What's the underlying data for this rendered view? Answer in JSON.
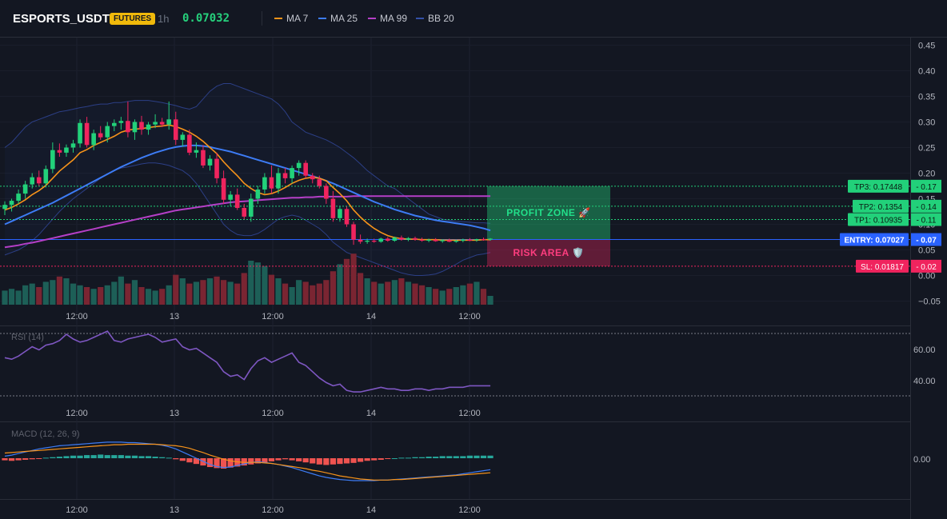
{
  "header": {
    "symbol": "ESPORTS_USDT",
    "badge": "FUTURES",
    "interval": "1h",
    "last_price": "0.07032",
    "legend": [
      {
        "label": "MA 7",
        "color": "#f7931a"
      },
      {
        "label": "MA 25",
        "color": "#3d7cf5"
      },
      {
        "label": "MA 99",
        "color": "#b53fc7"
      },
      {
        "label": "BB 20",
        "color": "#3451a8"
      }
    ]
  },
  "colors": {
    "up": "#26a69a",
    "down": "#f23645",
    "candle_up": "#22d17a",
    "candle_down": "#f0245e",
    "rsi": "#7e57c2",
    "macd": "#3d7cf5",
    "signal": "#f7931a"
  },
  "price_axis": {
    "ticks": [
      "0.45",
      "0.40",
      "0.35",
      "0.30",
      "0.25",
      "0.20",
      "0.15",
      "0.10",
      "0.05",
      "0.00",
      "−0.05"
    ]
  },
  "time_axis": {
    "labels": [
      "12:00",
      "13",
      "12:00",
      "14",
      "12:00"
    ]
  },
  "levels": {
    "tp3": {
      "label": "TP3: 0.17448",
      "axis": "0.17",
      "value": 0.17448
    },
    "tp2": {
      "label": "TP2: 0.1354",
      "axis": "0.14",
      "value": 0.1354
    },
    "tp1": {
      "label": "TP1: 0.10935",
      "axis": "0.11",
      "value": 0.10935
    },
    "entry": {
      "label": "ENTRY: 0.07027",
      "axis": "0.07",
      "value": 0.07027
    },
    "sl": {
      "label": "SL: 0.01817",
      "axis": "0.02",
      "value": 0.01817
    }
  },
  "zones": {
    "profit": "PROFIT ZONE 🚀",
    "risk": "RISK AREA 🛡️"
  },
  "rsi_panel": {
    "title": "RSI (14)",
    "ticks": [
      "60.00",
      "40.00"
    ]
  },
  "macd_panel": {
    "title": "MACD (12, 26, 9)",
    "ticks": [
      "0.00"
    ]
  },
  "chart_data": {
    "type": "candlestick",
    "ylim": [
      -0.05,
      0.45
    ],
    "candles": [
      {
        "o": 0.13,
        "h": 0.145,
        "l": 0.118,
        "c": 0.138
      },
      {
        "o": 0.138,
        "h": 0.15,
        "l": 0.125,
        "c": 0.146
      },
      {
        "o": 0.146,
        "h": 0.168,
        "l": 0.14,
        "c": 0.16
      },
      {
        "o": 0.16,
        "h": 0.185,
        "l": 0.15,
        "c": 0.178
      },
      {
        "o": 0.178,
        "h": 0.2,
        "l": 0.17,
        "c": 0.192
      },
      {
        "o": 0.192,
        "h": 0.205,
        "l": 0.175,
        "c": 0.18
      },
      {
        "o": 0.18,
        "h": 0.215,
        "l": 0.172,
        "c": 0.208
      },
      {
        "o": 0.208,
        "h": 0.26,
        "l": 0.2,
        "c": 0.245
      },
      {
        "o": 0.245,
        "h": 0.258,
        "l": 0.232,
        "c": 0.24
      },
      {
        "o": 0.24,
        "h": 0.256,
        "l": 0.232,
        "c": 0.25
      },
      {
        "o": 0.25,
        "h": 0.265,
        "l": 0.24,
        "c": 0.258
      },
      {
        "o": 0.258,
        "h": 0.305,
        "l": 0.25,
        "c": 0.298
      },
      {
        "o": 0.298,
        "h": 0.31,
        "l": 0.25,
        "c": 0.255
      },
      {
        "o": 0.255,
        "h": 0.285,
        "l": 0.245,
        "c": 0.278
      },
      {
        "o": 0.278,
        "h": 0.292,
        "l": 0.265,
        "c": 0.27
      },
      {
        "o": 0.27,
        "h": 0.3,
        "l": 0.26,
        "c": 0.292
      },
      {
        "o": 0.292,
        "h": 0.305,
        "l": 0.282,
        "c": 0.298
      },
      {
        "o": 0.298,
        "h": 0.31,
        "l": 0.285,
        "c": 0.302
      },
      {
        "o": 0.302,
        "h": 0.34,
        "l": 0.27,
        "c": 0.28
      },
      {
        "o": 0.28,
        "h": 0.305,
        "l": 0.265,
        "c": 0.3
      },
      {
        "o": 0.3,
        "h": 0.312,
        "l": 0.275,
        "c": 0.285
      },
      {
        "o": 0.285,
        "h": 0.3,
        "l": 0.275,
        "c": 0.295
      },
      {
        "o": 0.295,
        "h": 0.315,
        "l": 0.288,
        "c": 0.3
      },
      {
        "o": 0.3,
        "h": 0.308,
        "l": 0.29,
        "c": 0.295
      },
      {
        "o": 0.295,
        "h": 0.34,
        "l": 0.285,
        "c": 0.305
      },
      {
        "o": 0.305,
        "h": 0.32,
        "l": 0.255,
        "c": 0.265
      },
      {
        "o": 0.265,
        "h": 0.28,
        "l": 0.252,
        "c": 0.275
      },
      {
        "o": 0.275,
        "h": 0.285,
        "l": 0.235,
        "c": 0.24
      },
      {
        "o": 0.24,
        "h": 0.26,
        "l": 0.23,
        "c": 0.245
      },
      {
        "o": 0.245,
        "h": 0.255,
        "l": 0.21,
        "c": 0.215
      },
      {
        "o": 0.215,
        "h": 0.235,
        "l": 0.205,
        "c": 0.228
      },
      {
        "o": 0.228,
        "h": 0.24,
        "l": 0.18,
        "c": 0.19
      },
      {
        "o": 0.19,
        "h": 0.205,
        "l": 0.14,
        "c": 0.148
      },
      {
        "o": 0.148,
        "h": 0.165,
        "l": 0.135,
        "c": 0.158
      },
      {
        "o": 0.158,
        "h": 0.17,
        "l": 0.128,
        "c": 0.132
      },
      {
        "o": 0.132,
        "h": 0.14,
        "l": 0.11,
        "c": 0.115
      },
      {
        "o": 0.115,
        "h": 0.16,
        "l": 0.105,
        "c": 0.15
      },
      {
        "o": 0.15,
        "h": 0.175,
        "l": 0.14,
        "c": 0.168
      },
      {
        "o": 0.168,
        "h": 0.2,
        "l": 0.16,
        "c": 0.192
      },
      {
        "o": 0.192,
        "h": 0.215,
        "l": 0.16,
        "c": 0.17
      },
      {
        "o": 0.17,
        "h": 0.21,
        "l": 0.16,
        "c": 0.2
      },
      {
        "o": 0.2,
        "h": 0.21,
        "l": 0.18,
        "c": 0.19
      },
      {
        "o": 0.19,
        "h": 0.215,
        "l": 0.18,
        "c": 0.21
      },
      {
        "o": 0.21,
        "h": 0.225,
        "l": 0.195,
        "c": 0.22
      },
      {
        "o": 0.22,
        "h": 0.225,
        "l": 0.19,
        "c": 0.195
      },
      {
        "o": 0.195,
        "h": 0.2,
        "l": 0.18,
        "c": 0.188
      },
      {
        "o": 0.188,
        "h": 0.195,
        "l": 0.17,
        "c": 0.175
      },
      {
        "o": 0.175,
        "h": 0.18,
        "l": 0.14,
        "c": 0.15
      },
      {
        "o": 0.15,
        "h": 0.165,
        "l": 0.105,
        "c": 0.112
      },
      {
        "o": 0.112,
        "h": 0.135,
        "l": 0.105,
        "c": 0.13
      },
      {
        "o": 0.13,
        "h": 0.135,
        "l": 0.095,
        "c": 0.1
      },
      {
        "o": 0.1,
        "h": 0.105,
        "l": 0.06,
        "c": 0.07
      },
      {
        "o": 0.07,
        "h": 0.08,
        "l": 0.062,
        "c": 0.066
      },
      {
        "o": 0.066,
        "h": 0.072,
        "l": 0.062,
        "c": 0.068
      },
      {
        "o": 0.068,
        "h": 0.072,
        "l": 0.064,
        "c": 0.066
      },
      {
        "o": 0.066,
        "h": 0.074,
        "l": 0.064,
        "c": 0.072
      },
      {
        "o": 0.072,
        "h": 0.075,
        "l": 0.066,
        "c": 0.068
      },
      {
        "o": 0.068,
        "h": 0.076,
        "l": 0.066,
        "c": 0.074
      },
      {
        "o": 0.074,
        "h": 0.078,
        "l": 0.068,
        "c": 0.07
      },
      {
        "o": 0.07,
        "h": 0.075,
        "l": 0.067,
        "c": 0.073
      },
      {
        "o": 0.073,
        "h": 0.076,
        "l": 0.068,
        "c": 0.07
      },
      {
        "o": 0.07,
        "h": 0.074,
        "l": 0.066,
        "c": 0.068
      },
      {
        "o": 0.068,
        "h": 0.072,
        "l": 0.065,
        "c": 0.07
      },
      {
        "o": 0.07,
        "h": 0.073,
        "l": 0.066,
        "c": 0.067
      },
      {
        "o": 0.067,
        "h": 0.071,
        "l": 0.064,
        "c": 0.069
      },
      {
        "o": 0.069,
        "h": 0.072,
        "l": 0.065,
        "c": 0.066
      },
      {
        "o": 0.066,
        "h": 0.07,
        "l": 0.064,
        "c": 0.068
      },
      {
        "o": 0.068,
        "h": 0.072,
        "l": 0.065,
        "c": 0.07
      },
      {
        "o": 0.07,
        "h": 0.073,
        "l": 0.067,
        "c": 0.069
      },
      {
        "o": 0.069,
        "h": 0.072,
        "l": 0.066,
        "c": 0.071
      },
      {
        "o": 0.071,
        "h": 0.074,
        "l": 0.068,
        "c": 0.07
      },
      {
        "o": 0.07,
        "h": 0.073,
        "l": 0.068,
        "c": 0.072
      }
    ],
    "volume": [
      8,
      9,
      8,
      11,
      12,
      10,
      13,
      14,
      16,
      15,
      12,
      11,
      10,
      9,
      10,
      11,
      13,
      16,
      12,
      14,
      10,
      9,
      8,
      9,
      11,
      17,
      15,
      12,
      13,
      14,
      15,
      16,
      14,
      13,
      12,
      18,
      25,
      24,
      22,
      17,
      15,
      12,
      10,
      14,
      13,
      11,
      12,
      14,
      19,
      23,
      26,
      29,
      18,
      15,
      13,
      12,
      13,
      14,
      15,
      13,
      12,
      11,
      10,
      9,
      8,
      9,
      10,
      11,
      12,
      13,
      9,
      5
    ],
    "ma7": [
      0.128,
      0.133,
      0.14,
      0.148,
      0.158,
      0.166,
      0.176,
      0.19,
      0.204,
      0.215,
      0.226,
      0.24,
      0.246,
      0.254,
      0.26,
      0.266,
      0.272,
      0.28,
      0.284,
      0.286,
      0.287,
      0.289,
      0.291,
      0.292,
      0.294,
      0.291,
      0.286,
      0.28,
      0.272,
      0.262,
      0.25,
      0.238,
      0.222,
      0.208,
      0.195,
      0.18,
      0.17,
      0.162,
      0.158,
      0.16,
      0.165,
      0.172,
      0.18,
      0.186,
      0.19,
      0.192,
      0.19,
      0.185,
      0.172,
      0.16,
      0.146,
      0.128,
      0.114,
      0.102,
      0.092,
      0.084,
      0.078,
      0.074,
      0.072,
      0.071,
      0.071,
      0.07,
      0.07,
      0.07,
      0.069,
      0.069,
      0.069,
      0.069,
      0.069,
      0.069,
      0.07,
      0.07
    ],
    "ma25": [
      0.1,
      0.106,
      0.112,
      0.118,
      0.124,
      0.13,
      0.136,
      0.142,
      0.149,
      0.156,
      0.163,
      0.17,
      0.177,
      0.184,
      0.191,
      0.198,
      0.205,
      0.212,
      0.218,
      0.224,
      0.23,
      0.235,
      0.24,
      0.244,
      0.248,
      0.251,
      0.253,
      0.254,
      0.254,
      0.253,
      0.251,
      0.248,
      0.245,
      0.242,
      0.238,
      0.234,
      0.23,
      0.226,
      0.222,
      0.218,
      0.214,
      0.21,
      0.206,
      0.202,
      0.198,
      0.194,
      0.19,
      0.185,
      0.18,
      0.174,
      0.168,
      0.162,
      0.156,
      0.15,
      0.144,
      0.139,
      0.134,
      0.129,
      0.125,
      0.121,
      0.117,
      0.114,
      0.111,
      0.108,
      0.106,
      0.104,
      0.102,
      0.1,
      0.098,
      0.095,
      0.092,
      0.088
    ],
    "ma99": [
      0.055,
      0.057,
      0.059,
      0.062,
      0.064,
      0.067,
      0.07,
      0.073,
      0.076,
      0.079,
      0.082,
      0.085,
      0.088,
      0.091,
      0.094,
      0.097,
      0.1,
      0.103,
      0.106,
      0.109,
      0.112,
      0.115,
      0.118,
      0.121,
      0.124,
      0.127,
      0.129,
      0.131,
      0.133,
      0.135,
      0.137,
      0.139,
      0.141,
      0.143,
      0.144,
      0.145,
      0.146,
      0.147,
      0.148,
      0.149,
      0.15,
      0.151,
      0.152,
      0.152,
      0.153,
      0.153,
      0.154,
      0.154,
      0.154,
      0.154,
      0.154,
      0.155,
      0.155,
      0.155,
      0.155,
      0.155,
      0.155,
      0.155,
      0.155,
      0.155,
      0.155,
      0.155,
      0.155,
      0.155,
      0.155,
      0.155,
      0.155,
      0.155,
      0.155,
      0.155,
      0.155,
      0.155
    ],
    "bb_upper": [
      0.25,
      0.26,
      0.275,
      0.29,
      0.3,
      0.305,
      0.31,
      0.315,
      0.32,
      0.322,
      0.325,
      0.328,
      0.33,
      0.333,
      0.335,
      0.335,
      0.338,
      0.338,
      0.34,
      0.342,
      0.342,
      0.342,
      0.34,
      0.338,
      0.335,
      0.332,
      0.328,
      0.325,
      0.33,
      0.345,
      0.36,
      0.37,
      0.375,
      0.375,
      0.37,
      0.365,
      0.36,
      0.355,
      0.35,
      0.345,
      0.335,
      0.32,
      0.3,
      0.29,
      0.28,
      0.275,
      0.27,
      0.265,
      0.258,
      0.25,
      0.24,
      0.23,
      0.218,
      0.205,
      0.195,
      0.185,
      0.175,
      0.17,
      0.16,
      0.15,
      0.14,
      0.13,
      0.12,
      0.115,
      0.11,
      0.108,
      0.106,
      0.105,
      0.104,
      0.103,
      0.103,
      0.102
    ],
    "bb_lower": [
      0.04,
      0.045,
      0.05,
      0.058,
      0.068,
      0.08,
      0.095,
      0.11,
      0.125,
      0.138,
      0.15,
      0.16,
      0.17,
      0.18,
      0.19,
      0.198,
      0.205,
      0.21,
      0.212,
      0.215,
      0.218,
      0.22,
      0.22,
      0.218,
      0.215,
      0.21,
      0.205,
      0.195,
      0.18,
      0.16,
      0.14,
      0.12,
      0.1,
      0.088,
      0.08,
      0.078,
      0.078,
      0.082,
      0.09,
      0.1,
      0.11,
      0.115,
      0.118,
      0.115,
      0.108,
      0.1,
      0.092,
      0.08,
      0.065,
      0.055,
      0.045,
      0.04,
      0.035,
      0.03,
      0.025,
      0.02,
      0.015,
      0.01,
      0.005,
      0.002,
      0.0,
      0.0,
      0.001,
      0.003,
      0.008,
      0.015,
      0.022,
      0.03,
      0.035,
      0.04,
      0.042,
      0.045
    ],
    "rsi": [
      55,
      54,
      56,
      59,
      62,
      60,
      63,
      64,
      66,
      70,
      67,
      65,
      66,
      68,
      70,
      72,
      66,
      65,
      67,
      68,
      69,
      70,
      68,
      65,
      66,
      67,
      62,
      60,
      61,
      58,
      55,
      52,
      46,
      43,
      44,
      41,
      48,
      53,
      55,
      52,
      54,
      56,
      58,
      52,
      50,
      46,
      42,
      39,
      37,
      38,
      34,
      33,
      33,
      34,
      35,
      36,
      35,
      35,
      34,
      34,
      35,
      35,
      34,
      35,
      35,
      36,
      36,
      36,
      37,
      37,
      37,
      37
    ],
    "macd_hist": [
      -0.004,
      -0.005,
      -0.004,
      -0.003,
      -0.002,
      -0.001,
      0.001,
      0.002,
      0.003,
      0.004,
      0.005,
      0.005,
      0.006,
      0.006,
      0.007,
      0.006,
      0.006,
      0.006,
      0.005,
      0.005,
      0.004,
      0.004,
      0.003,
      0.002,
      0.001,
      -0.002,
      -0.005,
      -0.008,
      -0.011,
      -0.014,
      -0.017,
      -0.019,
      -0.02,
      -0.018,
      -0.016,
      -0.014,
      -0.012,
      -0.01,
      -0.008,
      -0.006,
      -0.004,
      -0.002,
      -0.004,
      -0.006,
      -0.008,
      -0.01,
      -0.012,
      -0.013,
      -0.012,
      -0.011,
      -0.01,
      -0.009,
      -0.007,
      -0.005,
      -0.004,
      -0.003,
      -0.001,
      0.0,
      0.001,
      0.001,
      0.002,
      0.002,
      0.003,
      0.003,
      0.004,
      0.004,
      0.004,
      0.004,
      0.005,
      0.005,
      0.005,
      0.005
    ],
    "macd": [
      0.004,
      0.006,
      0.009,
      0.012,
      0.015,
      0.018,
      0.02,
      0.022,
      0.024,
      0.025,
      0.026,
      0.027,
      0.028,
      0.029,
      0.03,
      0.031,
      0.031,
      0.031,
      0.03,
      0.03,
      0.029,
      0.028,
      0.027,
      0.025,
      0.022,
      0.018,
      0.012,
      0.006,
      0.0,
      -0.006,
      -0.012,
      -0.016,
      -0.018,
      -0.017,
      -0.014,
      -0.011,
      -0.008,
      -0.007,
      -0.008,
      -0.01,
      -0.012,
      -0.015,
      -0.018,
      -0.022,
      -0.026,
      -0.03,
      -0.034,
      -0.037,
      -0.039,
      -0.041,
      -0.042,
      -0.043,
      -0.043,
      -0.043,
      -0.043,
      -0.042,
      -0.042,
      -0.041,
      -0.04,
      -0.039,
      -0.038,
      -0.037,
      -0.036,
      -0.035,
      -0.034,
      -0.033,
      -0.032,
      -0.03,
      -0.028,
      -0.026,
      -0.024,
      -0.022
    ],
    "signal": [
      0.01,
      0.011,
      0.012,
      0.013,
      0.014,
      0.015,
      0.016,
      0.017,
      0.018,
      0.019,
      0.02,
      0.021,
      0.022,
      0.023,
      0.024,
      0.025,
      0.026,
      0.026,
      0.027,
      0.027,
      0.027,
      0.027,
      0.027,
      0.026,
      0.025,
      0.024,
      0.022,
      0.019,
      0.015,
      0.011,
      0.006,
      0.002,
      -0.002,
      -0.005,
      -0.007,
      -0.008,
      -0.008,
      -0.008,
      -0.009,
      -0.01,
      -0.012,
      -0.014,
      -0.016,
      -0.018,
      -0.02,
      -0.023,
      -0.025,
      -0.028,
      -0.031,
      -0.034,
      -0.036,
      -0.038,
      -0.04,
      -0.041,
      -0.042,
      -0.042,
      -0.042,
      -0.041,
      -0.041,
      -0.04,
      -0.039,
      -0.038,
      -0.037,
      -0.036,
      -0.035,
      -0.034,
      -0.033,
      -0.032,
      -0.031,
      -0.03,
      -0.029,
      -0.028
    ]
  }
}
